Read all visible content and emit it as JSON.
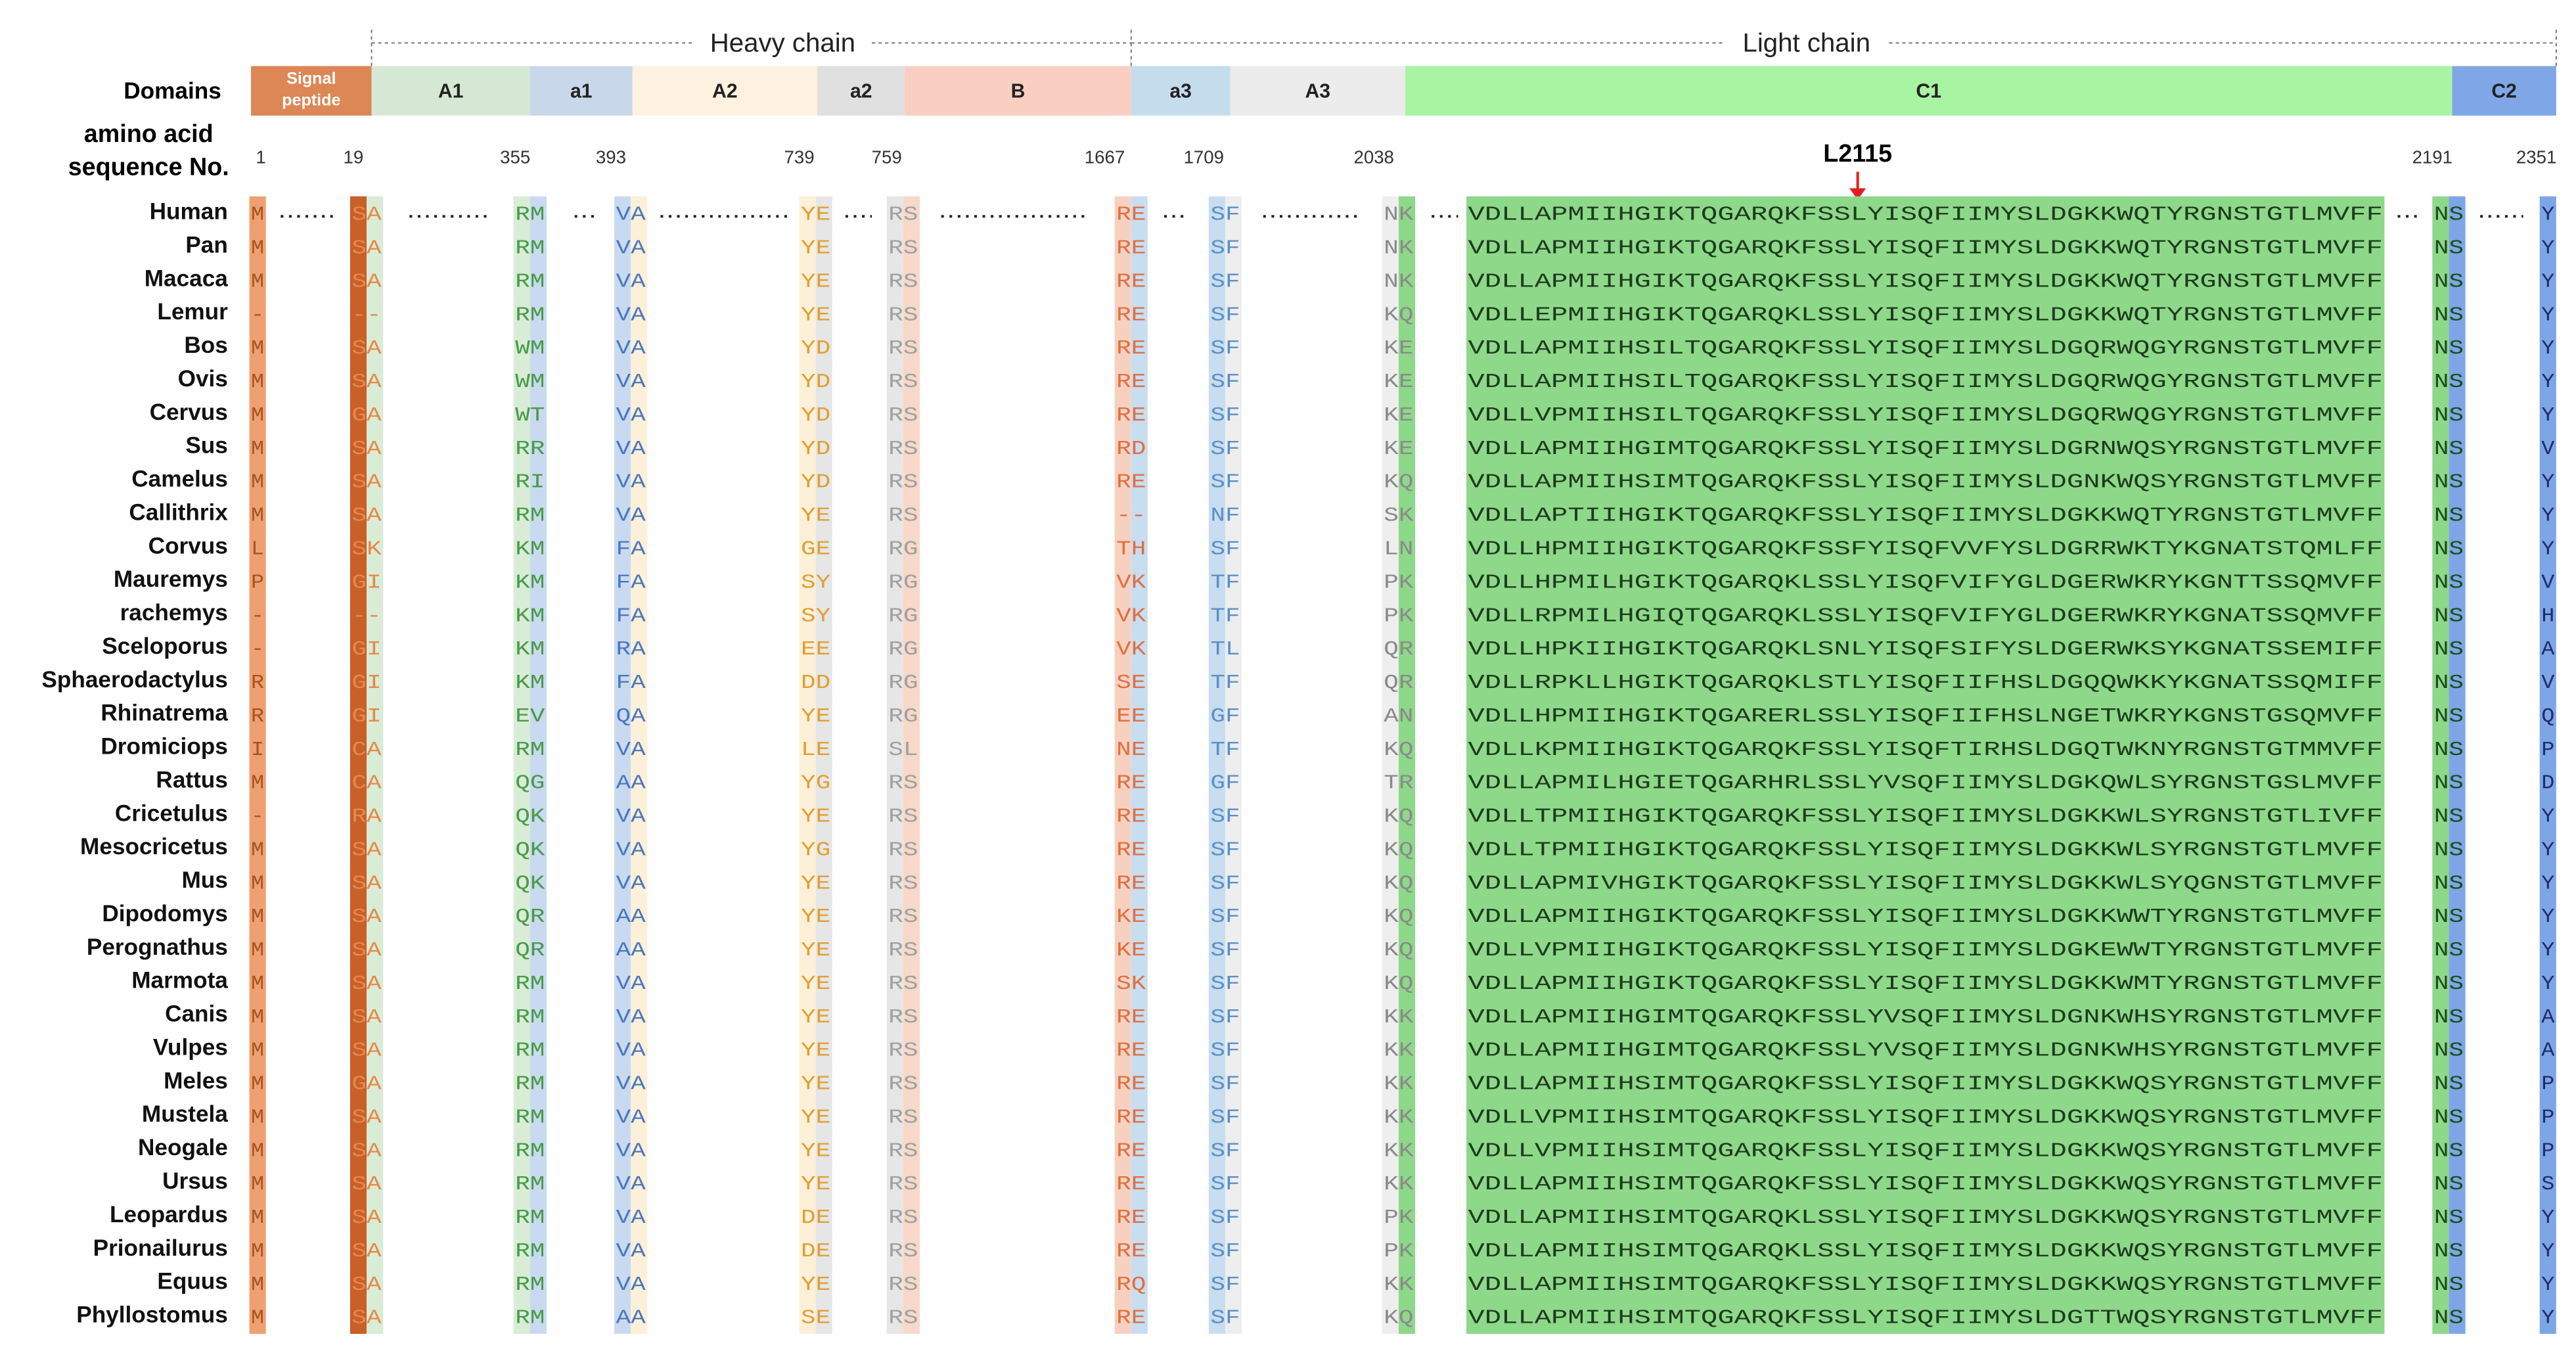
{
  "header": {
    "heavy_chain": "Heavy chain",
    "light_chain": "Light chain",
    "domains_label": "Domains",
    "sequence_label_1": "amino acid",
    "sequence_label_2": "sequence No.",
    "marker": "L2115"
  },
  "domains": [
    "Signal peptide",
    "A1",
    "a1",
    "A2",
    "a2",
    "B",
    "a3",
    "A3",
    "C1",
    "C2"
  ],
  "positions": [
    1,
    19,
    355,
    393,
    739,
    759,
    1667,
    1709,
    2038,
    2191,
    2351
  ],
  "rows": [
    {
      "name": "Human",
      "segments": [
        "M",
        "SA",
        "RM",
        "VA",
        "YE",
        "RS",
        "RE",
        "SF",
        "NK",
        "VDLLAPMIIHGIKTQGARQKFSSLYISQFIIMYSLDGKKWQTYRGNSTGTLMVFF",
        "NS",
        "Y"
      ]
    },
    {
      "name": "Pan",
      "segments": [
        "M",
        "SA",
        "RM",
        "VA",
        "YE",
        "RS",
        "RE",
        "SF",
        "NK",
        "VDLLAPMIIHGIKTQGARQKFSSLYISQFIIMYSLDGKKWQTYRGNSTGTLMVFF",
        "NS",
        "Y"
      ]
    },
    {
      "name": "Macaca",
      "segments": [
        "M",
        "SA",
        "RM",
        "VA",
        "YE",
        "RS",
        "RE",
        "SF",
        "NK",
        "VDLLAPMIIHGIKTQGARQKFSSLYISQFIIMYSLDGKKWQTYRGNSTGTLMVFF",
        "NS",
        "Y"
      ]
    },
    {
      "name": "Lemur",
      "segments": [
        "-",
        "--",
        "RM",
        "VA",
        "YE",
        "RS",
        "RE",
        "SF",
        "KQ",
        "VDLLEPMIIHGIKTQGARQKLSSLYISQFIIMYSLDGKKWQTYRGNSTGTLMVFF",
        "NS",
        "Y"
      ]
    },
    {
      "name": "Bos",
      "segments": [
        "M",
        "SA",
        "WM",
        "VA",
        "YD",
        "RS",
        "RE",
        "SF",
        "KE",
        "VDLLAPMIIHSILTQGARQKFSSLYISQFIIMYSLDGQRWQGYRGNSTGTLMVFF",
        "NS",
        "Y"
      ]
    },
    {
      "name": "Ovis",
      "segments": [
        "M",
        "SA",
        "WM",
        "VA",
        "YD",
        "RS",
        "RE",
        "SF",
        "KE",
        "VDLLAPMIIHSILTQGARQKFSSLYISQFIIMYSLDGQRWQGYRGNSTGTLMVFF",
        "NS",
        "Y"
      ]
    },
    {
      "name": "Cervus",
      "segments": [
        "M",
        "GA",
        "WT",
        "VA",
        "YD",
        "RS",
        "RE",
        "SF",
        "KE",
        "VDLLVPMIIHSILTQGARQKFSSLYISQFIIMYSLDGQRWQGYRGNSTGTLMVFF",
        "NS",
        "Y"
      ]
    },
    {
      "name": "Sus",
      "segments": [
        "M",
        "SA",
        "RR",
        "VA",
        "YD",
        "RS",
        "RD",
        "SF",
        "KE",
        "VDLLAPMIIHGIMTQGARQKFSSLYISQFIIMYSLDGRNWQSYRGNSTGTLMVFF",
        "NS",
        "V"
      ]
    },
    {
      "name": "Camelus",
      "segments": [
        "M",
        "SA",
        "RI",
        "VA",
        "YD",
        "RS",
        "RE",
        "SF",
        "KQ",
        "VDLLAPMIIHSIMTQGARQKFSSLYISQFIIMYSLDGNKWQSYRGNSTGTLMVFF",
        "NS",
        "Y"
      ]
    },
    {
      "name": "Callithrix",
      "segments": [
        "M",
        "SA",
        "RM",
        "VA",
        "YE",
        "RS",
        "--",
        "NF",
        "SK",
        "VDLLAPTIIHGIKTQGARQKFSSLYISQFIIMYSLDGKKWQTYRGNSTGTLMVFF",
        "NS",
        "Y"
      ]
    },
    {
      "name": "Corvus",
      "segments": [
        "L",
        "SK",
        "KM",
        "FA",
        "GE",
        "RG",
        "TH",
        "SF",
        "LN",
        "VDLLHPMIIHGIKTQGARQKFSSFYISQFVVFYSLDGRRWKTYKGNATSTQMLFF",
        "NS",
        "Y"
      ]
    },
    {
      "name": "Mauremys",
      "segments": [
        "P",
        "GI",
        "KM",
        "FA",
        "SY",
        "RG",
        "VK",
        "TF",
        "PK",
        "VDLLHPMILHGIKTQGARQKLSSLYISQFVIFYGLDGERWKRYKGNTTSSQMVFF",
        "NS",
        "V"
      ]
    },
    {
      "name": "rachemys",
      "segments": [
        "-",
        "--",
        "KM",
        "FA",
        "SY",
        "RG",
        "VK",
        "TF",
        "PK",
        "VDLLRPMILHGIQTQGARQKLSSLYISQFVIFYGLDGERWKRYKGNATSSQMVFF",
        "NS",
        "H"
      ]
    },
    {
      "name": "Sceloporus",
      "segments": [
        "-",
        "GI",
        "KM",
        "RA",
        "EE",
        "RG",
        "VK",
        "TL",
        "QR",
        "VDLLHPKIIHGIKTQGARQKLSNLYISQFSIFYSLDGERWKSYKGNATSSEMIFF",
        "NS",
        "A"
      ]
    },
    {
      "name": "Sphaerodactylus",
      "segments": [
        "R",
        "GI",
        "KM",
        "FA",
        "DD",
        "RG",
        "SE",
        "TF",
        "QR",
        "VDLLRPKLLHGIKTQGARQKLSTLYISQFIIFHSLDGQQWKKYKGNATSSQMIFF",
        "NS",
        "V"
      ]
    },
    {
      "name": "Rhinatrema",
      "segments": [
        "R",
        "GI",
        "EV",
        "QA",
        "YE",
        "RG",
        "EE",
        "GF",
        "AN",
        "VDLLHPMIIHGIKTQGARERLSSLYISQFIIFHSLNGETWKRYKGNSTGSQMVFF",
        "NS",
        "Q"
      ]
    },
    {
      "name": "Dromiciops",
      "segments": [
        "I",
        "CA",
        "RM",
        "VA",
        "LE",
        "SL",
        "NE",
        "TF",
        "KQ",
        "VDLLKPMIIHGIKTQGARQKFSSLYISQFTIRHSLDGQTWKNYRGNSTGTMMVFF",
        "NS",
        "P"
      ]
    },
    {
      "name": "Rattus",
      "segments": [
        "M",
        "CA",
        "QG",
        "AA",
        "YG",
        "RS",
        "RE",
        "GF",
        "TR",
        "VDLLAPMILHGIETQGARHRLSSLYVSQFIIMYSLDGKQWLSYRGNSTGSLMVFF",
        "NS",
        "D"
      ]
    },
    {
      "name": "Cricetulus",
      "segments": [
        "-",
        "RA",
        "QK",
        "VA",
        "YE",
        "RS",
        "RE",
        "SF",
        "KQ",
        "VDLLTPMIIHGIKTQGARQKFSSLYISQFIIMYSLDGKKWLSYRGNSTGTLIVFF",
        "NS",
        "Y"
      ]
    },
    {
      "name": "Mesocricetus",
      "segments": [
        "M",
        "SA",
        "QK",
        "VA",
        "YG",
        "RS",
        "RE",
        "SF",
        "KQ",
        "VDLLTPMIIHGIKTQGARQKFSSLYISQFIIMYSLDGKKWLSYRGNSTGTLMVFF",
        "NS",
        "Y"
      ]
    },
    {
      "name": "Mus",
      "segments": [
        "M",
        "SA",
        "QK",
        "VA",
        "YE",
        "RS",
        "RE",
        "SF",
        "KQ",
        "VDLLAPMIVHGIKTQGARQKFSSLYISQFIIMYSLDGKKWLSYQGNSTGTLMVFF",
        "NS",
        "Y"
      ]
    },
    {
      "name": "Dipodomys",
      "segments": [
        "M",
        "SA",
        "QR",
        "AA",
        "YE",
        "RS",
        "KE",
        "SF",
        "KQ",
        "VDLLAPMIIHGIKTQGARQKFSSLYISQFIIMYSLDGKKWWTYRGNSTGTLMVFF",
        "NS",
        "Y"
      ]
    },
    {
      "name": "Perognathus",
      "segments": [
        "M",
        "SA",
        "QR",
        "AA",
        "YE",
        "RS",
        "KE",
        "SF",
        "KQ",
        "VDLLVPMIIHGIKTQGARQKFSSLYISQFIIMYSLDGKEWWTYRGNSTGTLMVFF",
        "NS",
        "Y"
      ]
    },
    {
      "name": "Marmota",
      "segments": [
        "M",
        "SA",
        "RM",
        "VA",
        "YE",
        "RS",
        "SK",
        "SF",
        "KQ",
        "VDLLAPMIIHGIKTQGARQKFSSLYISQFIIMYSLDGKKWMTYRGNSTGTLMVFF",
        "NS",
        "Y"
      ]
    },
    {
      "name": "Canis",
      "segments": [
        "M",
        "SA",
        "RM",
        "VA",
        "YE",
        "RS",
        "RE",
        "SF",
        "KK",
        "VDLLAPMIIHGIMTQGARQKFSSLYVSQFIIMYSLDGNKWHSYRGNSTGTLMVFF",
        "NS",
        "A"
      ]
    },
    {
      "name": "Vulpes",
      "segments": [
        "M",
        "SA",
        "RM",
        "VA",
        "YE",
        "RS",
        "RE",
        "SF",
        "KK",
        "VDLLAPMIIHGIMTQGARQKFSSLYVSQFIIMYSLDGNKWHSYRGNSTGTLMVFF",
        "NS",
        "A"
      ]
    },
    {
      "name": "Meles",
      "segments": [
        "M",
        "GA",
        "RM",
        "VA",
        "YE",
        "RS",
        "RE",
        "SF",
        "KK",
        "VDLLAPMIIHSIMTQGARQKFSSLYISQFIIMYSLDGKKWQSYRGNSTGTLMVFF",
        "NS",
        "P"
      ]
    },
    {
      "name": "Mustela",
      "segments": [
        "M",
        "SA",
        "RM",
        "VA",
        "YE",
        "RS",
        "RE",
        "SF",
        "KK",
        "VDLLVPMIIHSIMTQGARQKFSSLYISQFIIMYSLDGKKWQSYRGNSTGTLMVFF",
        "NS",
        "P"
      ]
    },
    {
      "name": "Neogale",
      "segments": [
        "M",
        "SA",
        "RM",
        "VA",
        "YE",
        "RS",
        "RE",
        "SF",
        "KK",
        "VDLLVPMIIHSIMTQGARQKFSSLYISQFIIMYSLDGKKWQSYRGNSTGTLMVFF",
        "NS",
        "P"
      ]
    },
    {
      "name": "Ursus",
      "segments": [
        "M",
        "SA",
        "RM",
        "VA",
        "YE",
        "RS",
        "RE",
        "SF",
        "KK",
        "VDLLAPMIIHSIMTQGARQKFSSLYISQFIIMYSLDGKKWQSYRGNSTGTLMVFF",
        "NS",
        "S"
      ]
    },
    {
      "name": "Leopardus",
      "segments": [
        "M",
        "SA",
        "RM",
        "VA",
        "DE",
        "RS",
        "RE",
        "SF",
        "PK",
        "VDLLAPMIIHSIMTQGARQKLSSLYISQFIIMYSLDGKKWQSYRGNSTGTLMVFF",
        "NS",
        "Y"
      ]
    },
    {
      "name": "Prionailurus",
      "segments": [
        "M",
        "SA",
        "RM",
        "VA",
        "DE",
        "RS",
        "RE",
        "SF",
        "PK",
        "VDLLAPMIIHSIMTQGARQKLSSLYISQFIIMYSLDGKKWQSYRGNSTGTLMVFF",
        "NS",
        "Y"
      ]
    },
    {
      "name": "Equus",
      "segments": [
        "M",
        "SA",
        "RM",
        "VA",
        "YE",
        "RS",
        "RQ",
        "SF",
        "KK",
        "VDLLAPMIIHSIMTQGARQKFSSLYISQFIIMYSLDGKKWQSYRGNSTGTLMVFF",
        "NS",
        "Y"
      ]
    },
    {
      "name": "Phyllostomus",
      "segments": [
        "M",
        "SA",
        "RM",
        "AA",
        "SE",
        "RS",
        "RE",
        "SF",
        "KQ",
        "VDLLAPMIIHSIMTQGARQKFSSLYISQFIIMYSLDGTTWQSYRGNSTGTLMVFF",
        "NS",
        "Y"
      ]
    }
  ]
}
